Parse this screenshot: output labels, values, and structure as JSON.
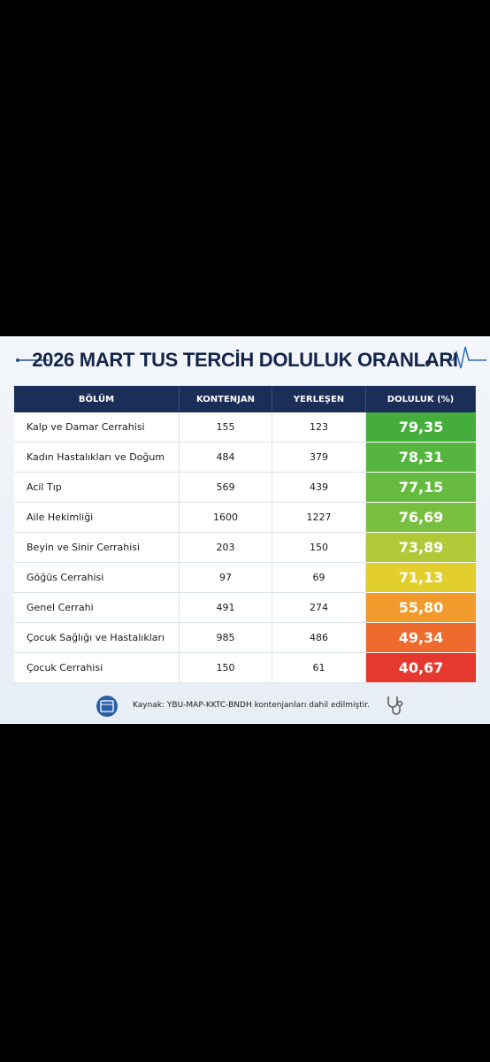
{
  "header": {
    "title": "2026 MART TUS TERCİH DOLULUK ORANLARI"
  },
  "table": {
    "columns": [
      "BÖLÜM",
      "KONTENJAN",
      "YERLEŞEN",
      "DOLULUK (%)"
    ],
    "rows": [
      [
        "Kalp ve Damar Cerrahisi",
        155,
        123,
        "79,35"
      ],
      [
        "Kadın Hastalıkları ve Doğum",
        484,
        379,
        "78,31"
      ],
      [
        "Acil Tıp",
        569,
        439,
        "77,15"
      ],
      [
        "Aile Hekimliği",
        1600,
        1227,
        "76,69"
      ],
      [
        "Beyin ve Sinir Cerrahisi",
        203,
        150,
        "73,89"
      ],
      [
        "Göğüs Cerrahisi",
        97,
        69,
        "71,13"
      ],
      [
        "Genel Cerrahi",
        491,
        274,
        "55,80"
      ],
      [
        "Çocuk Sağlığı ve Hastalıkları",
        985,
        486,
        "49,34"
      ],
      [
        "Çocuk Cerrahisi",
        150,
        61,
        "40,67"
      ]
    ],
    "doluluk_colors": [
      "#45ad3c",
      "#55b53f",
      "#66ba3f",
      "#78bf40",
      "#b0c937",
      "#e2cf2d",
      "#f29a2b",
      "#ee6a2d",
      "#e5382e"
    ]
  },
  "footer": {
    "source": "Kaynak: YBU-MAP-KKTC-BNDH kontenjanları dahil edilmiştir."
  }
}
